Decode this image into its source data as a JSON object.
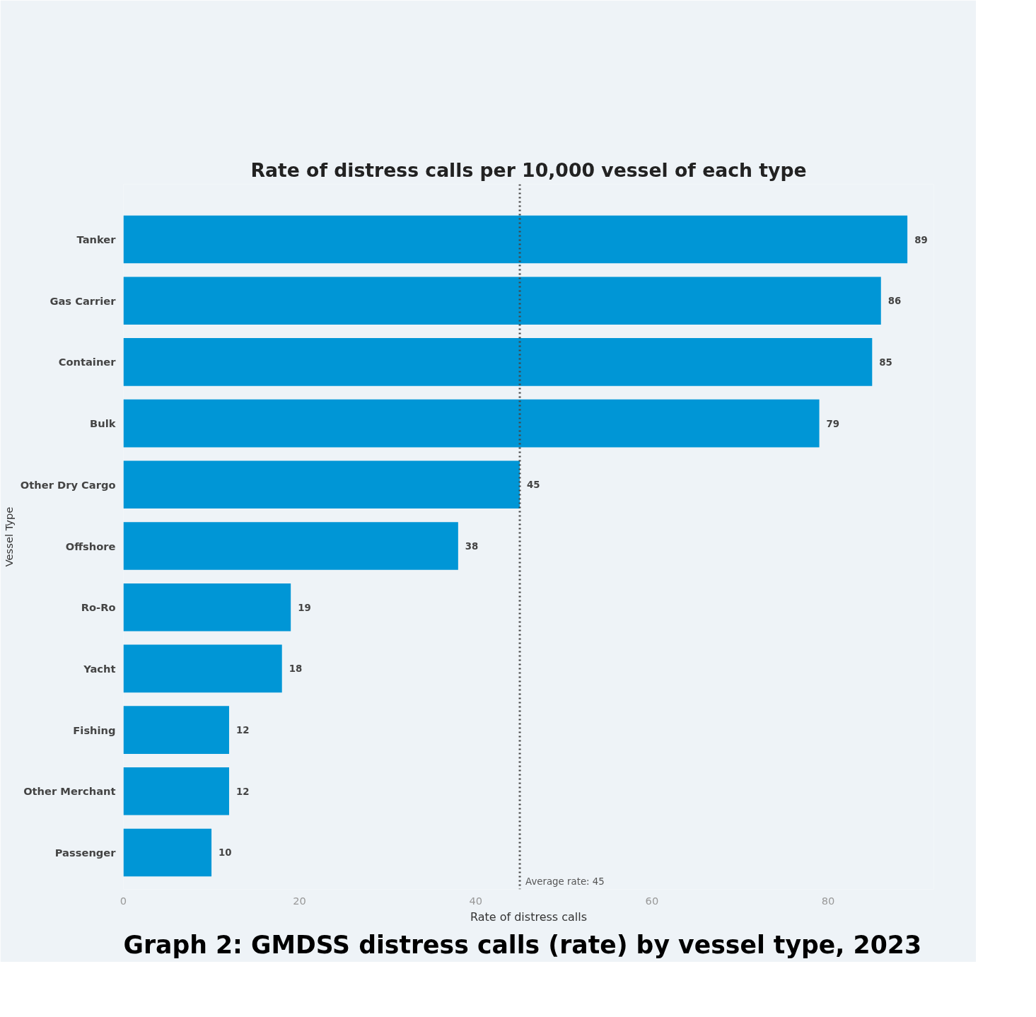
{
  "chart_data": {
    "type": "bar",
    "orientation": "horizontal",
    "title": "Rate of distress calls per 10,000 vessel of each type",
    "xlabel": "Rate of distress calls",
    "ylabel": "Vessel Type",
    "categories": [
      "Tanker",
      "Gas Carrier",
      "Container",
      "Bulk",
      "Other Dry Cargo",
      "Offshore",
      "Ro-Ro",
      "Yacht",
      "Fishing",
      "Other Merchant",
      "Passenger"
    ],
    "values": [
      89,
      86,
      85,
      79,
      45,
      38,
      19,
      18,
      12,
      12,
      10
    ],
    "color": "#0096d6",
    "xlim": [
      0,
      92
    ],
    "xticks": [
      0,
      20,
      40,
      60,
      80
    ],
    "data_labels": true,
    "grid": false,
    "ref_lines": [
      {
        "axis": "x",
        "value": 45,
        "label": "Average rate: 45",
        "line_style": "dotted",
        "color": "#444444"
      }
    ],
    "annotations": [
      "Graph 2: GMDSS distress calls (rate) by vessel type, 2023"
    ]
  }
}
